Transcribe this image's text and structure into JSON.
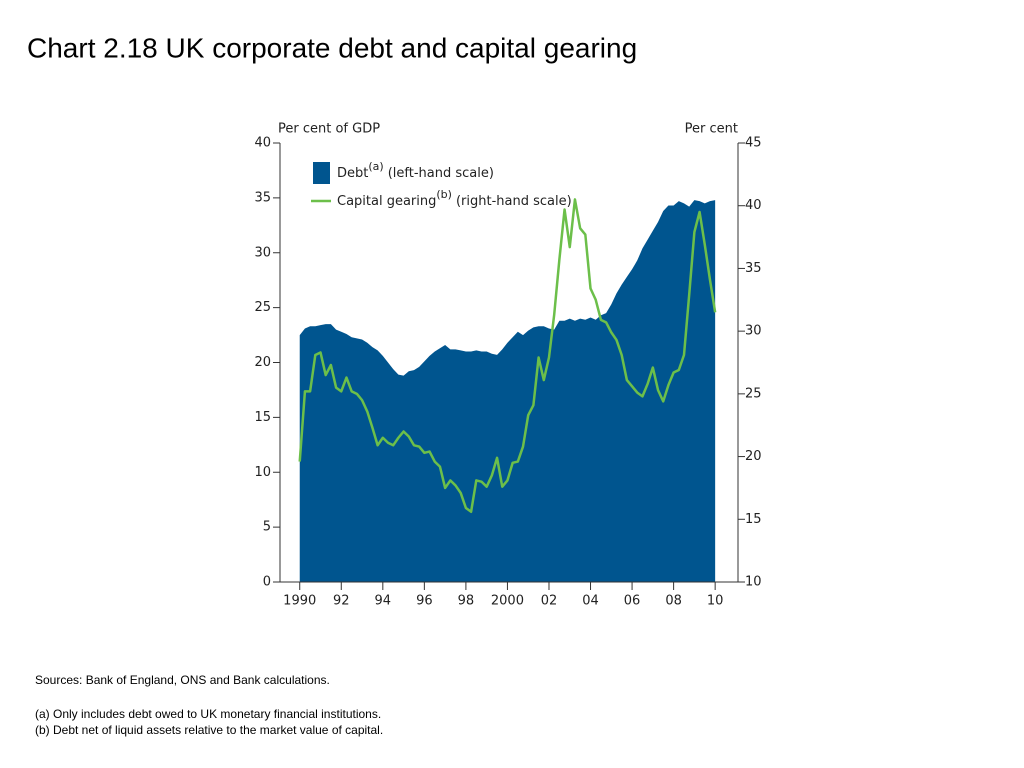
{
  "title": "Chart 2.18  UK corporate debt and capital gearing",
  "chart_data": {
    "type": "area",
    "ylabel": "Per cent of GDP",
    "y2label": "Per cent",
    "x": [
      1990,
      1990.25,
      1990.5,
      1990.75,
      1991,
      1991.25,
      1991.5,
      1991.75,
      1992,
      1992.25,
      1992.5,
      1992.75,
      1993,
      1993.25,
      1993.5,
      1993.75,
      1994,
      1994.25,
      1994.5,
      1994.75,
      1995,
      1995.25,
      1995.5,
      1995.75,
      1996,
      1996.25,
      1996.5,
      1996.75,
      1997,
      1997.25,
      1997.5,
      1997.75,
      1998,
      1998.25,
      1998.5,
      1998.75,
      1999,
      1999.25,
      1999.5,
      1999.75,
      2000,
      2000.25,
      2000.5,
      2000.75,
      2001,
      2001.25,
      2001.5,
      2001.75,
      2002,
      2002.25,
      2002.5,
      2002.75,
      2003,
      2003.25,
      2003.5,
      2003.75,
      2004,
      2004.25,
      2004.5,
      2004.75,
      2005,
      2005.25,
      2005.5,
      2005.75,
      2006,
      2006.25,
      2006.5,
      2006.75,
      2007,
      2007.25,
      2007.5,
      2007.75,
      2008,
      2008.25,
      2008.5,
      2008.75,
      2009,
      2009.25,
      2009.5,
      2009.75,
      2010
    ],
    "series": [
      {
        "name": "Debt",
        "note": "(a)",
        "scale_label": "(left-hand scale)",
        "color": "#00558f",
        "values": [
          22.5,
          23.1,
          23.3,
          23.3,
          23.4,
          23.5,
          23.5,
          23.0,
          22.8,
          22.6,
          22.3,
          22.2,
          22.1,
          21.8,
          21.4,
          21.1,
          20.6,
          20.0,
          19.4,
          18.9,
          18.8,
          19.2,
          19.3,
          19.6,
          20.1,
          20.6,
          21.0,
          21.3,
          21.6,
          21.2,
          21.2,
          21.1,
          21.0,
          21.0,
          21.1,
          21.0,
          21.0,
          20.8,
          20.7,
          21.2,
          21.8,
          22.3,
          22.8,
          22.5,
          22.9,
          23.2,
          23.3,
          23.3,
          23.1,
          23.0,
          23.8,
          23.8,
          24.0,
          23.8,
          24.0,
          23.9,
          24.1,
          23.9,
          24.3,
          24.5,
          25.3,
          26.3,
          27.1,
          27.8,
          28.5,
          29.3,
          30.4,
          31.2,
          32.0,
          32.8,
          33.8,
          34.3,
          34.3,
          34.7,
          34.5,
          34.2,
          34.8,
          34.7,
          34.5,
          34.7,
          34.8
        ]
      },
      {
        "name": "Capital gearing",
        "note": "(b)",
        "scale_label": "(right-hand scale)",
        "type": "line",
        "axis": "y2",
        "color": "#6cbf4a",
        "values": [
          19.6,
          25.2,
          25.2,
          28.1,
          28.3,
          26.5,
          27.3,
          25.5,
          25.2,
          26.3,
          25.2,
          25.0,
          24.5,
          23.6,
          22.3,
          20.9,
          21.5,
          21.1,
          20.9,
          21.5,
          22.0,
          21.6,
          20.9,
          20.8,
          20.3,
          20.4,
          19.6,
          19.2,
          17.5,
          18.1,
          17.7,
          17.1,
          15.9,
          15.6,
          18.1,
          18.0,
          17.6,
          18.5,
          19.9,
          17.6,
          18.1,
          19.5,
          19.6,
          20.8,
          23.3,
          24.1,
          27.9,
          26.1,
          27.9,
          31.3,
          35.7,
          39.7,
          36.7,
          40.5,
          38.2,
          37.7,
          33.4,
          32.5,
          30.9,
          30.7,
          29.9,
          29.3,
          28.1,
          26.1,
          25.6,
          25.1,
          24.8,
          25.8,
          27.1,
          25.3,
          24.4,
          25.7,
          26.7,
          26.9,
          28.1,
          32.9,
          37.9,
          39.5,
          36.9,
          34.1,
          31.5
        ]
      }
    ],
    "xlim": [
      1989.05,
      2011.1
    ],
    "xticks": [
      1990,
      {
        "value": 1992,
        "label": "92"
      },
      {
        "value": 1994,
        "label": "94"
      },
      {
        "value": 1996,
        "label": "96"
      },
      {
        "value": 1998,
        "label": "98"
      },
      2000,
      {
        "value": 2002,
        "label": "02"
      },
      {
        "value": 2004,
        "label": "04"
      },
      {
        "value": 2006,
        "label": "06"
      },
      {
        "value": 2008,
        "label": "08"
      },
      {
        "value": 2010,
        "label": "10"
      }
    ],
    "ylim": [
      0,
      40
    ],
    "yticks": [
      0,
      5,
      10,
      15,
      20,
      25,
      30,
      35,
      40
    ],
    "y2lim": [
      10,
      45
    ],
    "y2ticks": [
      10,
      15,
      20,
      25,
      30,
      35,
      40,
      45
    ],
    "legend": "top-left"
  },
  "footer": {
    "sources": "Sources:  Bank of England, ONS and Bank calculations.",
    "notes": [
      "(a)  Only includes debt owed to UK monetary financial institutions.",
      "(b)  Debt net of liquid assets relative to the market value of capital."
    ]
  }
}
